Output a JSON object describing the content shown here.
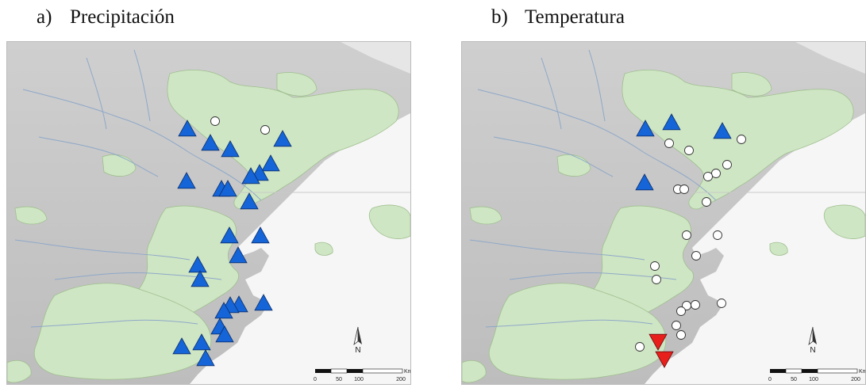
{
  "panels": [
    {
      "letter": "a)",
      "title": "Precipitación",
      "north_label": "N",
      "scale_ticks": [
        "0",
        "50",
        "100",
        "200"
      ],
      "scale_unit": "Km",
      "symbols": {
        "up_triangles": [
          [
            227,
            110
          ],
          [
            256,
            128
          ],
          [
            281,
            136
          ],
          [
            347,
            123
          ],
          [
            332,
            154
          ],
          [
            318,
            166
          ],
          [
            307,
            170
          ],
          [
            226,
            176
          ],
          [
            270,
            186
          ],
          [
            278,
            186
          ],
          [
            305,
            202
          ],
          [
            280,
            245
          ],
          [
            319,
            245
          ],
          [
            291,
            270
          ],
          [
            240,
            282
          ],
          [
            243,
            300
          ],
          [
            323,
            330
          ],
          [
            292,
            332
          ],
          [
            281,
            333
          ],
          [
            273,
            340
          ],
          [
            268,
            360
          ],
          [
            274,
            370
          ],
          [
            245,
            380
          ],
          [
            220,
            385
          ],
          [
            250,
            400
          ]
        ],
        "circles": [
          [
            262,
            100
          ],
          [
            325,
            111
          ]
        ],
        "down_triangles": []
      },
      "legend_colors": {
        "up": "#1565d8",
        "down": "#e8201c",
        "circle": "#ffffff"
      }
    },
    {
      "letter": "b)",
      "title": "Temperatura",
      "north_label": "N",
      "scale_ticks": [
        "0",
        "50",
        "100",
        "200"
      ],
      "scale_unit": "Km",
      "symbols": {
        "up_triangles": [
          [
            231,
            110
          ],
          [
            264,
            102
          ],
          [
            328,
            113
          ],
          [
            230,
            178
          ]
        ],
        "circles": [
          [
            261,
            128
          ],
          [
            286,
            137
          ],
          [
            352,
            123
          ],
          [
            334,
            155
          ],
          [
            320,
            166
          ],
          [
            310,
            170
          ],
          [
            272,
            186
          ],
          [
            280,
            186
          ],
          [
            308,
            202
          ],
          [
            283,
            244
          ],
          [
            322,
            244
          ],
          [
            295,
            270
          ],
          [
            243,
            283
          ],
          [
            245,
            300
          ],
          [
            327,
            330
          ],
          [
            294,
            332
          ],
          [
            283,
            333
          ],
          [
            276,
            340
          ],
          [
            270,
            358
          ],
          [
            276,
            370
          ],
          [
            224,
            385
          ]
        ],
        "down_triangles": [
          [
            247,
            378
          ],
          [
            255,
            400
          ]
        ]
      },
      "legend_colors": {
        "up": "#1565d8",
        "down": "#e8201c",
        "circle": "#ffffff"
      }
    }
  ]
}
